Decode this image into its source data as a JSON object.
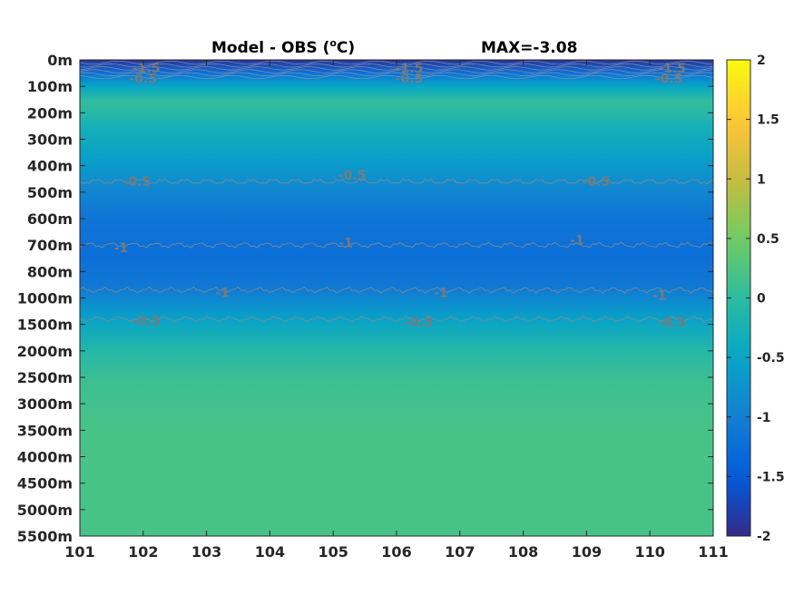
{
  "chart_data": {
    "type": "heatmap",
    "title_left": "Model - OBS (",
    "title_unit": "C)",
    "title_degree": "o",
    "title_right": "MAX=-3.08",
    "x_ticks": [
      "101",
      "102",
      "103",
      "104",
      "105",
      "106",
      "107",
      "108",
      "109",
      "110",
      "111"
    ],
    "xlim": [
      101,
      111
    ],
    "y_ticks": [
      "0m",
      "100m",
      "200m",
      "300m",
      "400m",
      "500m",
      "600m",
      "700m",
      "800m",
      "1000m",
      "1500m",
      "2000m",
      "2500m",
      "3000m",
      "3500m",
      "4000m",
      "4500m",
      "5000m",
      "5500m"
    ],
    "colorbar": {
      "ticks": [
        "2",
        "1.5",
        "1",
        "0.5",
        "0",
        "-0.5",
        "-1",
        "-1.5",
        "-2"
      ],
      "clim": [
        -2,
        2
      ],
      "colormap": "parula"
    },
    "depth_profile": [
      {
        "level": 0,
        "value": -1.9
      },
      {
        "level": 0.5,
        "value": -1.2
      },
      {
        "level": 1,
        "value": -0.5
      },
      {
        "level": 1.6,
        "value": 0.05
      },
      {
        "level": 2.6,
        "value": -0.3
      },
      {
        "level": 3.8,
        "value": -0.6
      },
      {
        "level": 4.8,
        "value": -0.9
      },
      {
        "level": 6.0,
        "value": -1.15
      },
      {
        "level": 7.4,
        "value": -1.25
      },
      {
        "level": 8.6,
        "value": -1.1
      },
      {
        "level": 9.8,
        "value": -0.55
      },
      {
        "level": 11.0,
        "value": -0.1
      },
      {
        "level": 12.0,
        "value": 0.1
      },
      {
        "level": 14.0,
        "value": 0.2
      },
      {
        "level": 18.0,
        "value": 0.2
      }
    ],
    "contour_labels": [
      {
        "text": "-1.5",
        "x": 102.05,
        "level": 0.3
      },
      {
        "text": "-0.5",
        "x": 102.0,
        "level": 0.7
      },
      {
        "text": "-1.5",
        "x": 106.2,
        "level": 0.3
      },
      {
        "text": "-0.5",
        "x": 106.2,
        "level": 0.7
      },
      {
        "text": "-1.5",
        "x": 110.35,
        "level": 0.3
      },
      {
        "text": "-0.5",
        "x": 110.3,
        "level": 0.7
      },
      {
        "text": "-0.5",
        "x": 101.9,
        "level": 4.6
      },
      {
        "text": "-0.5",
        "x": 105.3,
        "level": 4.35
      },
      {
        "text": "-0.5",
        "x": 109.15,
        "level": 4.6
      },
      {
        "text": "-1",
        "x": 101.65,
        "level": 7.1
      },
      {
        "text": "-1",
        "x": 105.2,
        "level": 6.9
      },
      {
        "text": "-1",
        "x": 108.85,
        "level": 6.8
      },
      {
        "text": "-1",
        "x": 103.25,
        "level": 8.8
      },
      {
        "text": "-1",
        "x": 106.7,
        "level": 8.8
      },
      {
        "text": "-1",
        "x": 110.15,
        "level": 8.9
      },
      {
        "text": "-0.5",
        "x": 102.05,
        "level": 9.85
      },
      {
        "text": "-0.5",
        "x": 106.35,
        "level": 9.9
      },
      {
        "text": "-0.5",
        "x": 110.35,
        "level": 9.9
      }
    ],
    "contour_lines": [
      {
        "value": -0.5,
        "level": 4.6
      },
      {
        "value": -1,
        "level": 7.0
      },
      {
        "value": -1,
        "level": 8.7
      },
      {
        "value": -0.5,
        "level": 9.8
      }
    ]
  }
}
